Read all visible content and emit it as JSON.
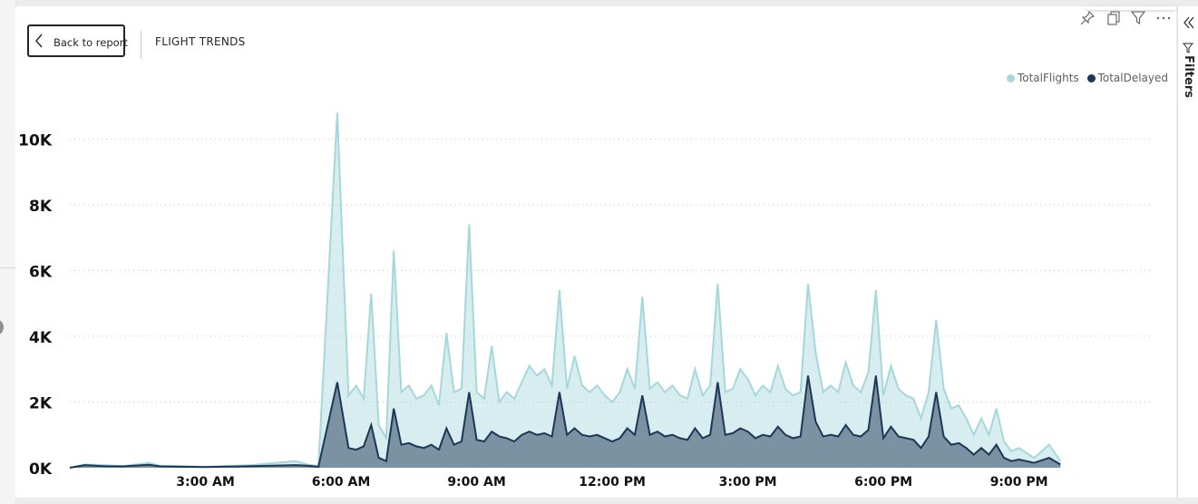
{
  "header": {
    "back_label": "Back to report",
    "title": "FLIGHT TRENDS"
  },
  "header_icons": [
    "pin-icon",
    "copy-icon",
    "filter-icon",
    "more-options-icon"
  ],
  "filters_pane": {
    "label": "Filters"
  },
  "colors": {
    "total_flights": "#a6d7db",
    "total_delayed": "#1d3756"
  },
  "chart_data": {
    "type": "area",
    "title": "",
    "xlabel": "",
    "ylabel": "",
    "ylim": [
      0,
      11000
    ],
    "y_ticks": [
      "0K",
      "2K",
      "4K",
      "6K",
      "8K",
      "10K"
    ],
    "y_tick_values": [
      0,
      2000,
      4000,
      6000,
      8000,
      10000
    ],
    "x_ticks": [
      "3:00 AM",
      "6:00 AM",
      "9:00 AM",
      "12:00 PM",
      "3:00 PM",
      "6:00 PM",
      "9:00 PM"
    ],
    "x_tick_values": [
      "03:00",
      "06:00",
      "09:00",
      "12:00",
      "15:00",
      "18:00",
      "21:00"
    ],
    "x_range": [
      "00:00",
      "23:55"
    ],
    "grid": "horizontal dotted",
    "legend_position": "top-right",
    "series": [
      {
        "name": "TotalFlights",
        "points": [
          [
            "00:00",
            0
          ],
          [
            "00:20",
            100
          ],
          [
            "00:45",
            80
          ],
          [
            "01:10",
            50
          ],
          [
            "01:45",
            150
          ],
          [
            "02:00",
            60
          ],
          [
            "03:00",
            30
          ],
          [
            "04:00",
            80
          ],
          [
            "05:00",
            200
          ],
          [
            "05:15",
            100
          ],
          [
            "05:30",
            50
          ],
          [
            "05:55",
            10800
          ],
          [
            "06:10",
            2200
          ],
          [
            "06:20",
            2500
          ],
          [
            "06:30",
            2100
          ],
          [
            "06:40",
            5300
          ],
          [
            "06:50",
            1300
          ],
          [
            "07:00",
            900
          ],
          [
            "07:10",
            6600
          ],
          [
            "07:20",
            2300
          ],
          [
            "07:30",
            2500
          ],
          [
            "07:40",
            2100
          ],
          [
            "07:50",
            2200
          ],
          [
            "08:00",
            2500
          ],
          [
            "08:10",
            1900
          ],
          [
            "08:20",
            4100
          ],
          [
            "08:30",
            2300
          ],
          [
            "08:40",
            2400
          ],
          [
            "08:50",
            7400
          ],
          [
            "09:00",
            2300
          ],
          [
            "09:10",
            2100
          ],
          [
            "09:20",
            3700
          ],
          [
            "09:30",
            2000
          ],
          [
            "09:40",
            2300
          ],
          [
            "09:50",
            2100
          ],
          [
            "10:00",
            2600
          ],
          [
            "10:10",
            3100
          ],
          [
            "10:20",
            2800
          ],
          [
            "10:30",
            3000
          ],
          [
            "10:40",
            2500
          ],
          [
            "10:50",
            5400
          ],
          [
            "11:00",
            2400
          ],
          [
            "11:10",
            3400
          ],
          [
            "11:20",
            2500
          ],
          [
            "11:30",
            2300
          ],
          [
            "11:40",
            2500
          ],
          [
            "11:50",
            2200
          ],
          [
            "12:00",
            2000
          ],
          [
            "12:10",
            2300
          ],
          [
            "12:20",
            3000
          ],
          [
            "12:30",
            2400
          ],
          [
            "12:40",
            5200
          ],
          [
            "12:50",
            2400
          ],
          [
            "13:00",
            2600
          ],
          [
            "13:10",
            2300
          ],
          [
            "13:20",
            2500
          ],
          [
            "13:30",
            2200
          ],
          [
            "13:40",
            2100
          ],
          [
            "13:50",
            3000
          ],
          [
            "14:00",
            2200
          ],
          [
            "14:10",
            2500
          ],
          [
            "14:20",
            5600
          ],
          [
            "14:30",
            2300
          ],
          [
            "14:40",
            2400
          ],
          [
            "14:50",
            3000
          ],
          [
            "15:00",
            2700
          ],
          [
            "15:10",
            2200
          ],
          [
            "15:20",
            2500
          ],
          [
            "15:30",
            2300
          ],
          [
            "15:40",
            3100
          ],
          [
            "15:50",
            2400
          ],
          [
            "16:00",
            2200
          ],
          [
            "16:10",
            2300
          ],
          [
            "16:20",
            5600
          ],
          [
            "16:30",
            3500
          ],
          [
            "16:40",
            2300
          ],
          [
            "16:50",
            2500
          ],
          [
            "17:00",
            2300
          ],
          [
            "17:10",
            3200
          ],
          [
            "17:20",
            2500
          ],
          [
            "17:30",
            2300
          ],
          [
            "17:40",
            2900
          ],
          [
            "17:50",
            5400
          ],
          [
            "18:00",
            2200
          ],
          [
            "18:10",
            3100
          ],
          [
            "18:20",
            2400
          ],
          [
            "18:30",
            2200
          ],
          [
            "18:40",
            2100
          ],
          [
            "18:50",
            1500
          ],
          [
            "19:00",
            2300
          ],
          [
            "19:10",
            4500
          ],
          [
            "19:20",
            2400
          ],
          [
            "19:30",
            1800
          ],
          [
            "19:40",
            1900
          ],
          [
            "19:50",
            1500
          ],
          [
            "20:00",
            1000
          ],
          [
            "20:10",
            1500
          ],
          [
            "20:20",
            1000
          ],
          [
            "20:30",
            1800
          ],
          [
            "20:40",
            800
          ],
          [
            "20:50",
            500
          ],
          [
            "21:00",
            600
          ],
          [
            "21:20",
            300
          ],
          [
            "21:40",
            700
          ],
          [
            "21:55",
            200
          ]
        ]
      },
      {
        "name": "TotalDelayed",
        "points": [
          [
            "00:00",
            0
          ],
          [
            "00:20",
            80
          ],
          [
            "00:45",
            50
          ],
          [
            "01:10",
            40
          ],
          [
            "01:45",
            90
          ],
          [
            "02:00",
            40
          ],
          [
            "03:00",
            20
          ],
          [
            "04:00",
            50
          ],
          [
            "05:00",
            80
          ],
          [
            "05:15",
            60
          ],
          [
            "05:30",
            30
          ],
          [
            "05:55",
            2600
          ],
          [
            "06:10",
            600
          ],
          [
            "06:20",
            550
          ],
          [
            "06:30",
            650
          ],
          [
            "06:40",
            1300
          ],
          [
            "06:50",
            300
          ],
          [
            "07:00",
            200
          ],
          [
            "07:10",
            1800
          ],
          [
            "07:20",
            700
          ],
          [
            "07:30",
            750
          ],
          [
            "07:40",
            650
          ],
          [
            "07:50",
            600
          ],
          [
            "08:00",
            700
          ],
          [
            "08:10",
            550
          ],
          [
            "08:20",
            1200
          ],
          [
            "08:30",
            700
          ],
          [
            "08:40",
            800
          ],
          [
            "08:50",
            2300
          ],
          [
            "09:00",
            850
          ],
          [
            "09:10",
            800
          ],
          [
            "09:20",
            1100
          ],
          [
            "09:30",
            950
          ],
          [
            "09:40",
            900
          ],
          [
            "09:50",
            800
          ],
          [
            "10:00",
            1000
          ],
          [
            "10:10",
            1100
          ],
          [
            "10:20",
            1000
          ],
          [
            "10:30",
            1050
          ],
          [
            "10:40",
            950
          ],
          [
            "10:50",
            2300
          ],
          [
            "11:00",
            1000
          ],
          [
            "11:10",
            1200
          ],
          [
            "11:20",
            1000
          ],
          [
            "11:30",
            950
          ],
          [
            "11:40",
            1000
          ],
          [
            "11:50",
            900
          ],
          [
            "12:00",
            800
          ],
          [
            "12:10",
            900
          ],
          [
            "12:20",
            1200
          ],
          [
            "12:30",
            1000
          ],
          [
            "12:40",
            2200
          ],
          [
            "12:50",
            1000
          ],
          [
            "13:00",
            1100
          ],
          [
            "13:10",
            950
          ],
          [
            "13:20",
            1000
          ],
          [
            "13:30",
            900
          ],
          [
            "13:40",
            850
          ],
          [
            "13:50",
            1200
          ],
          [
            "14:00",
            900
          ],
          [
            "14:10",
            1000
          ],
          [
            "14:20",
            2600
          ],
          [
            "14:30",
            1000
          ],
          [
            "14:40",
            1050
          ],
          [
            "14:50",
            1200
          ],
          [
            "15:00",
            1100
          ],
          [
            "15:10",
            900
          ],
          [
            "15:20",
            1000
          ],
          [
            "15:30",
            950
          ],
          [
            "15:40",
            1250
          ],
          [
            "15:50",
            1000
          ],
          [
            "16:00",
            900
          ],
          [
            "16:10",
            950
          ],
          [
            "16:20",
            2800
          ],
          [
            "16:30",
            1400
          ],
          [
            "16:40",
            950
          ],
          [
            "16:50",
            1000
          ],
          [
            "17:00",
            950
          ],
          [
            "17:10",
            1300
          ],
          [
            "17:20",
            1000
          ],
          [
            "17:30",
            950
          ],
          [
            "17:40",
            1150
          ],
          [
            "17:50",
            2800
          ],
          [
            "18:00",
            900
          ],
          [
            "18:10",
            1250
          ],
          [
            "18:20",
            950
          ],
          [
            "18:30",
            900
          ],
          [
            "18:40",
            850
          ],
          [
            "18:50",
            600
          ],
          [
            "19:00",
            950
          ],
          [
            "19:10",
            2300
          ],
          [
            "19:20",
            950
          ],
          [
            "19:30",
            700
          ],
          [
            "19:40",
            750
          ],
          [
            "19:50",
            600
          ],
          [
            "20:00",
            400
          ],
          [
            "20:10",
            600
          ],
          [
            "20:20",
            400
          ],
          [
            "20:30",
            700
          ],
          [
            "20:40",
            300
          ],
          [
            "20:50",
            200
          ],
          [
            "21:00",
            250
          ],
          [
            "21:20",
            150
          ],
          [
            "21:40",
            300
          ],
          [
            "21:55",
            100
          ]
        ]
      }
    ]
  }
}
